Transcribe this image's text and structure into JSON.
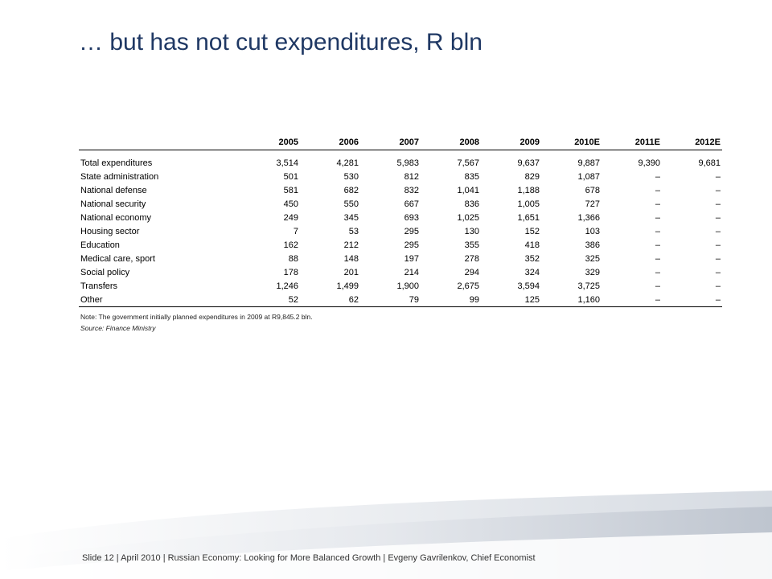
{
  "title": "… but has not cut expenditures, R bln",
  "table": {
    "headers": [
      "",
      "2005",
      "2006",
      "2007",
      "2008",
      "2009",
      "2010E",
      "2011E",
      "2012E"
    ],
    "rows": [
      [
        "Total expenditures",
        "3,514",
        "4,281",
        "5,983",
        "7,567",
        "9,637",
        "9,887",
        "9,390",
        "9,681"
      ],
      [
        "State administration",
        "501",
        "530",
        "812",
        "835",
        "829",
        "1,087",
        "–",
        "–"
      ],
      [
        "National defense",
        "581",
        "682",
        "832",
        "1,041",
        "1,188",
        "678",
        "–",
        "–"
      ],
      [
        "National security",
        "450",
        "550",
        "667",
        "836",
        "1,005",
        "727",
        "–",
        "–"
      ],
      [
        "National economy",
        "249",
        "345",
        "693",
        "1,025",
        "1,651",
        "1,366",
        "–",
        "–"
      ],
      [
        "Housing sector",
        "7",
        "53",
        "295",
        "130",
        "152",
        "103",
        "–",
        "–"
      ],
      [
        "Education",
        "162",
        "212",
        "295",
        "355",
        "418",
        "386",
        "–",
        "–"
      ],
      [
        "Medical care, sport",
        "88",
        "148",
        "197",
        "278",
        "352",
        "325",
        "–",
        "–"
      ],
      [
        "Social policy",
        "178",
        "201",
        "214",
        "294",
        "324",
        "329",
        "–",
        "–"
      ],
      [
        "Transfers",
        "1,246",
        "1,499",
        "1,900",
        "2,675",
        "3,594",
        "3,725",
        "–",
        "–"
      ],
      [
        "Other",
        "52",
        "62",
        "79",
        "99",
        "125",
        "1,160",
        "–",
        "–"
      ]
    ]
  },
  "note": "Note: The government initially planned expenditures in 2009 at R9,845.2 bln.",
  "source": "Source: Finance Ministry",
  "footer": "Slide 12  | April 2010 | Russian Economy: Looking for More Balanced Growth | Evgeny Gavrilenkov, Chief Economist",
  "colors": {
    "title": "#1f3864",
    "swoosh": "#c9ced6"
  }
}
